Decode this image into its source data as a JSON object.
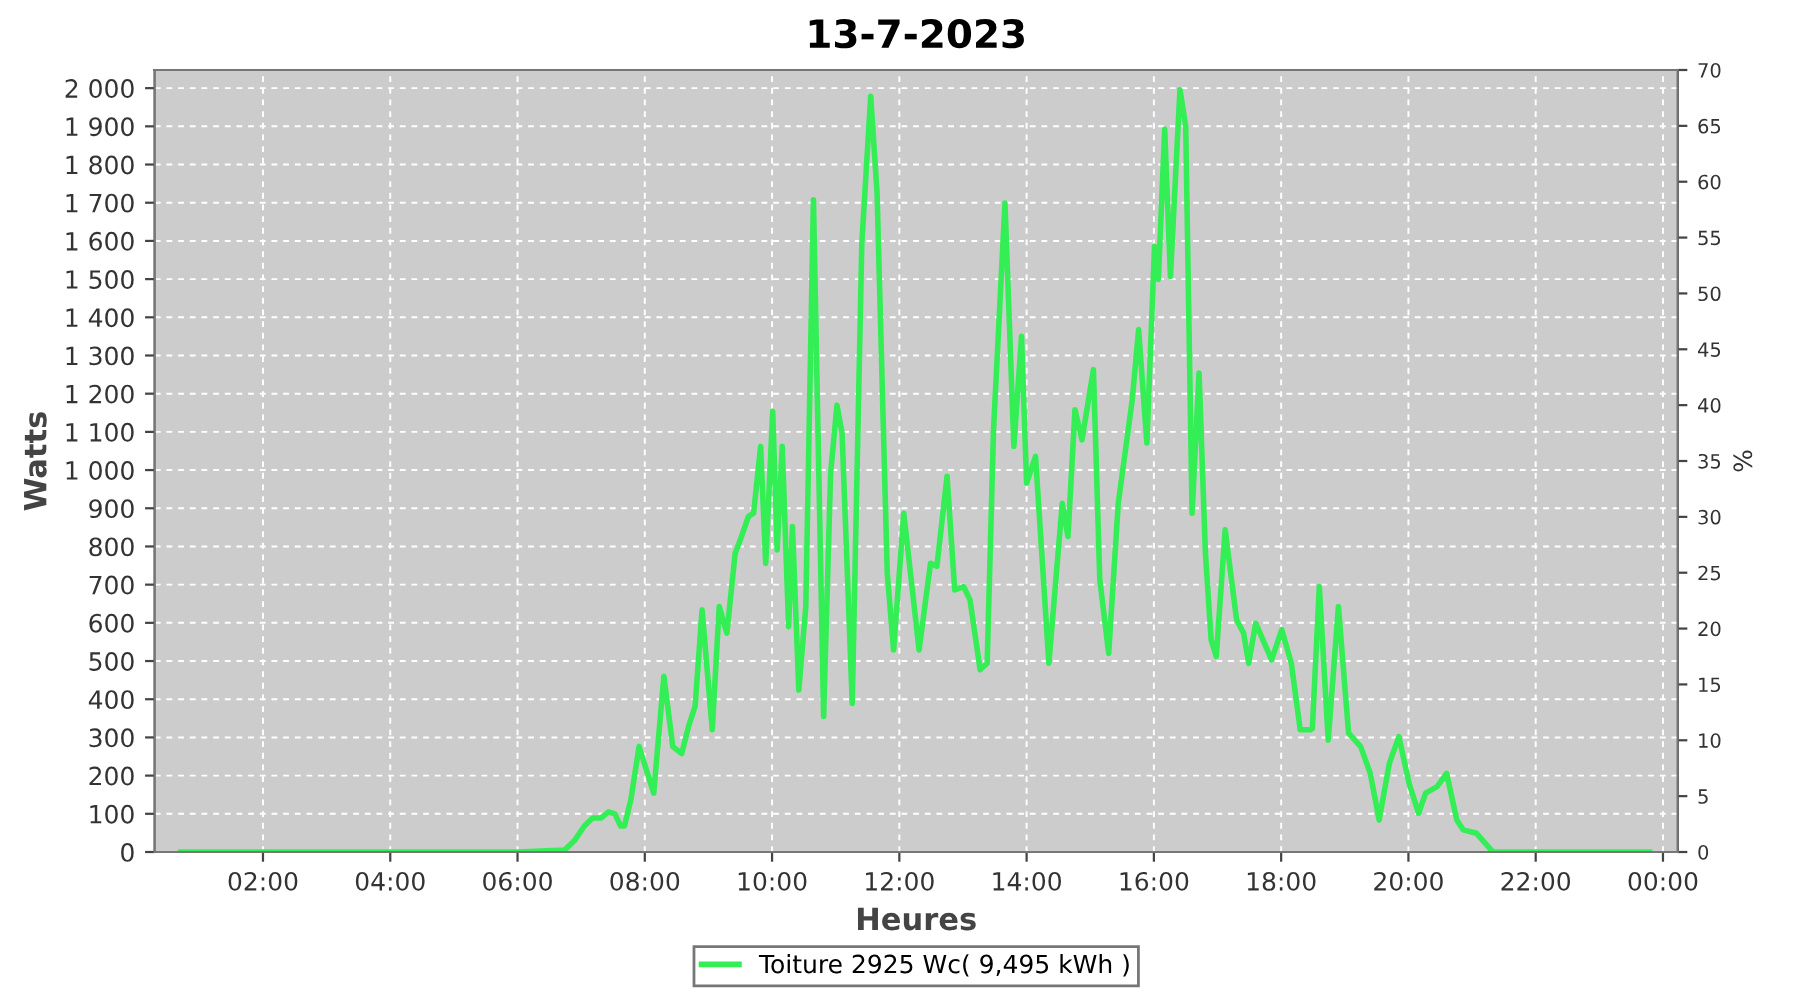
{
  "chart_data": {
    "type": "line",
    "title": "13-7-2023",
    "xlabel": "Heures",
    "ylabel": "Watts",
    "y2label": "%",
    "xlim": [
      0.3,
      24.23
    ],
    "ylim": [
      0,
      2047.5
    ],
    "y2lim": [
      0,
      70
    ],
    "xticks": [
      {
        "value": 2,
        "label": "02:00"
      },
      {
        "value": 4,
        "label": "04:00"
      },
      {
        "value": 6,
        "label": "06:00"
      },
      {
        "value": 8,
        "label": "08:00"
      },
      {
        "value": 10,
        "label": "10:00"
      },
      {
        "value": 12,
        "label": "12:00"
      },
      {
        "value": 14,
        "label": "14:00"
      },
      {
        "value": 16,
        "label": "16:00"
      },
      {
        "value": 18,
        "label": "18:00"
      },
      {
        "value": 20,
        "label": "20:00"
      },
      {
        "value": 22,
        "label": "22:00"
      },
      {
        "value": 24,
        "label": "00:00"
      }
    ],
    "yticks": [
      0,
      100,
      200,
      300,
      400,
      500,
      600,
      700,
      800,
      900,
      {
        "value": 1000,
        "label": "1 000"
      },
      {
        "value": 1100,
        "label": "1 100"
      },
      {
        "value": 1200,
        "label": "1 200"
      },
      {
        "value": 1300,
        "label": "1 300"
      },
      {
        "value": 1400,
        "label": "1 400"
      },
      {
        "value": 1500,
        "label": "1 500"
      },
      {
        "value": 1600,
        "label": "1 600"
      },
      {
        "value": 1700,
        "label": "1 700"
      },
      {
        "value": 1800,
        "label": "1 800"
      },
      {
        "value": 1900,
        "label": "1 900"
      },
      {
        "value": 2000,
        "label": "2 000"
      }
    ],
    "y2ticks": [
      0,
      5,
      10,
      15,
      20,
      25,
      30,
      35,
      40,
      45,
      50,
      55,
      60,
      65,
      70
    ],
    "grid": true,
    "legend": "bottom",
    "marker": "none",
    "line_style": "solid",
    "series": [
      {
        "name": "Toiture 2925 Wc( 9,495 kWh )",
        "color": "#33ee55",
        "x": [
          0.71,
          2.0,
          4.0,
          6.0,
          6.74,
          6.9,
          7.05,
          7.18,
          7.31,
          7.43,
          7.53,
          7.62,
          7.68,
          7.78,
          7.91,
          8.14,
          8.3,
          8.44,
          8.58,
          8.69,
          8.79,
          8.9,
          9.06,
          9.17,
          9.29,
          9.42,
          9.5,
          9.63,
          9.71,
          9.82,
          9.9,
          10.01,
          10.08,
          10.16,
          10.26,
          10.32,
          10.42,
          10.53,
          10.65,
          10.81,
          10.92,
          11.02,
          11.1,
          11.26,
          11.41,
          11.55,
          11.65,
          11.81,
          11.91,
          12.07,
          12.31,
          12.49,
          12.59,
          12.75,
          12.87,
          13.01,
          13.11,
          13.27,
          13.38,
          13.48,
          13.66,
          13.8,
          13.92,
          14.0,
          14.14,
          14.35,
          14.56,
          14.65,
          14.76,
          14.87,
          15.05,
          15.15,
          15.29,
          15.44,
          15.66,
          15.76,
          15.89,
          16.01,
          16.07,
          16.17,
          16.26,
          16.41,
          16.5,
          16.6,
          16.71,
          16.81,
          16.9,
          16.98,
          17.12,
          17.3,
          17.41,
          17.49,
          17.6,
          17.85,
          18.01,
          18.16,
          18.3,
          18.46,
          18.49,
          18.6,
          18.74,
          18.9,
          19.06,
          19.25,
          19.4,
          19.54,
          19.7,
          19.85,
          20.01,
          20.16,
          20.27,
          20.45,
          20.6,
          20.76,
          20.86,
          21.07,
          21.33,
          22.0,
          23.0,
          23.79
        ],
        "values": [
          0,
          0,
          0,
          0,
          5,
          31,
          68,
          89,
          89,
          105,
          100,
          68,
          68,
          136,
          276,
          154,
          460,
          276,
          258,
          330,
          381,
          634,
          320,
          643,
          573,
          782,
          817,
          879,
          887,
          1062,
          756,
          1154,
          791,
          1062,
          590,
          852,
          424,
          643,
          1708,
          355,
          992,
          1170,
          1097,
          389,
          1593,
          1979,
          1726,
          730,
          529,
          887,
          529,
          756,
          748,
          984,
          686,
          695,
          660,
          477,
          494,
          1106,
          1699,
          1062,
          1350,
          966,
          1036,
          494,
          913,
          826,
          1158,
          1079,
          1263,
          713,
          520,
          913,
          1184,
          1368,
          1071,
          1586,
          1499,
          1892,
          1507,
          1996,
          1900,
          887,
          1254,
          782,
          555,
          512,
          844,
          608,
          573,
          494,
          599,
          503,
          582,
          494,
          320,
          320,
          323,
          695,
          293,
          643,
          311,
          276,
          206,
          84,
          232,
          302,
          180,
          101,
          154,
          171,
          206,
          84,
          58,
          49,
          0,
          0,
          0,
          0
        ]
      }
    ]
  }
}
